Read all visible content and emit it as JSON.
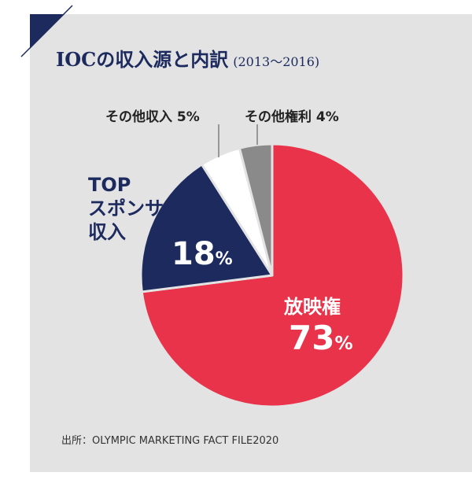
{
  "title": {
    "main": "IOCの収入源と内訳",
    "period": "(2013〜2016)"
  },
  "colors": {
    "background_panel": "#e3e3e3",
    "navy": "#1c2a5e",
    "red": "#e8334a",
    "white_slice": "#ffffff",
    "gray_slice": "#8a8a8a"
  },
  "chart_data": {
    "type": "pie",
    "title": "IOCの収入源と内訳(2013〜2016)",
    "unit": "%",
    "slices": [
      {
        "label": "放映権",
        "value": 73,
        "color": "#e8334a"
      },
      {
        "label": "TOPスポンサー収入",
        "value": 18,
        "color": "#1c2a5e"
      },
      {
        "label": "その他収入",
        "value": 5,
        "color": "#ffffff"
      },
      {
        "label": "その他権利",
        "value": 4,
        "color": "#8a8a8a"
      }
    ]
  },
  "labels": {
    "broadcast_name": "放映権",
    "broadcast_pct": "73",
    "top_line1": "TOP",
    "top_line2": "スポンサー",
    "top_line3": "収入",
    "top_pct": "18",
    "other_income": "その他収入 5%",
    "other_rights": "その他権利 4%",
    "percent_sign": "%"
  },
  "source": "出所：OLYMPIC MARKETING FACT FILE2020"
}
